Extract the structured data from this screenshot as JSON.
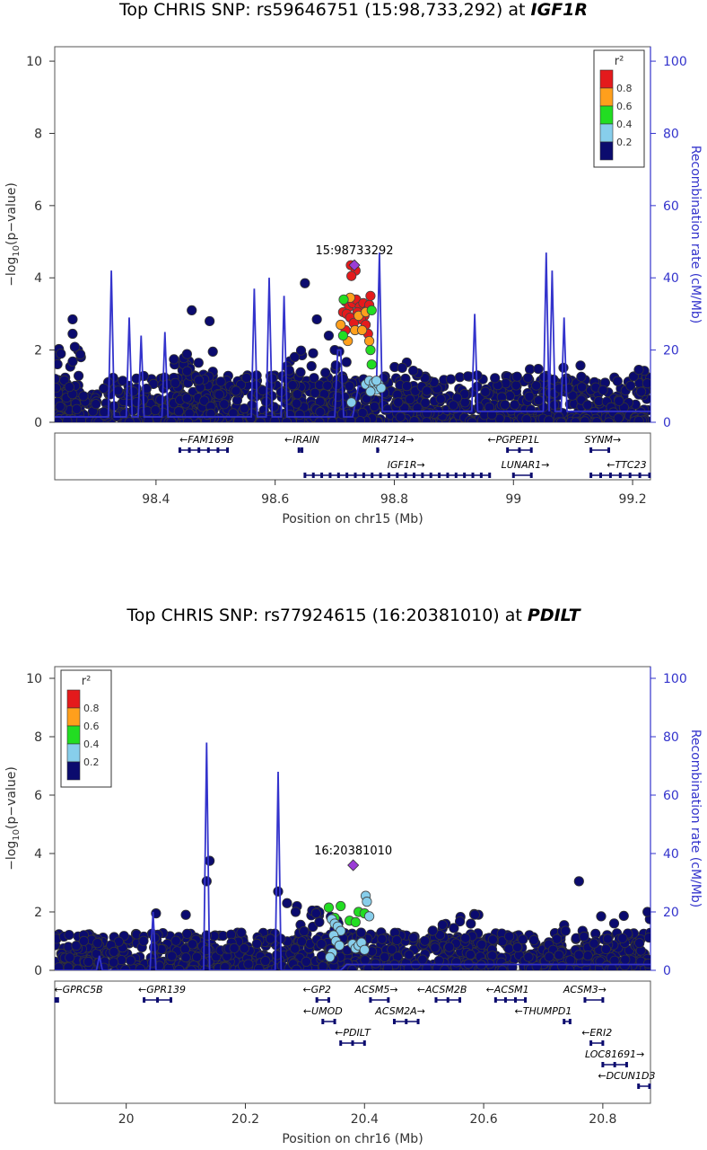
{
  "charts": [
    {
      "title_prefix": "Top CHRIS SNP: rs59646751 (15:98,733,292) at ",
      "title_gene": "IGF1R"
    },
    {
      "title_prefix": "Top CHRIS SNP: rs77924615 (16:20381010) at ",
      "title_gene": "PDILT"
    }
  ],
  "colors": {
    "r2_0.8_1.0": "#e41a1c",
    "r2_0.6_0.8": "#ff9f1c",
    "r2_0.4_0.6": "#22dd22",
    "r2_0.2_0.4": "#87ceeb",
    "r2_0.0_0.2": "#0b0b6e",
    "lead_snp": "#9b3dd6",
    "recombination": "#3333cc",
    "gene": "#0b0b6e"
  },
  "chart_data": [
    {
      "type": "scatter",
      "title": "Top CHRIS SNP: rs59646751 (15:98,733,292) at IGF1R",
      "xlabel": "Position on chr15 (Mb)",
      "ylabel": "-log10(p-value)",
      "y2label": "Recombination rate (cM/Mb)",
      "xlim": [
        98.23,
        99.23
      ],
      "xticks": [
        98.4,
        98.6,
        98.8,
        99,
        99.2
      ],
      "xtick_labels": [
        "98.4",
        "98.6",
        "98.8",
        "99",
        "99.2"
      ],
      "ylim": [
        0,
        10.4
      ],
      "yticks": [
        0,
        2,
        4,
        6,
        8,
        10
      ],
      "y2ticks": [
        0,
        20,
        40,
        60,
        80,
        100
      ],
      "legend": {
        "position": "top-right",
        "title": "r2",
        "labels": [
          "0.8",
          "0.6",
          "0.4",
          "0.2"
        ]
      },
      "lead_snp": {
        "label": "15:98733292",
        "x": 98.733,
        "y": 4.35
      },
      "colored_points": [
        {
          "x": 98.727,
          "y": 4.35,
          "r2": "high"
        },
        {
          "x": 98.735,
          "y": 4.2,
          "r2": "high"
        },
        {
          "x": 98.728,
          "y": 4.05,
          "r2": "high"
        },
        {
          "x": 98.718,
          "y": 3.35,
          "r2": "high"
        },
        {
          "x": 98.724,
          "y": 3.2,
          "r2": "high"
        },
        {
          "x": 98.73,
          "y": 3.3,
          "r2": "high"
        },
        {
          "x": 98.736,
          "y": 3.4,
          "r2": "high"
        },
        {
          "x": 98.742,
          "y": 3.2,
          "r2": "high"
        },
        {
          "x": 98.748,
          "y": 3.3,
          "r2": "high"
        },
        {
          "x": 98.754,
          "y": 3.1,
          "r2": "high"
        },
        {
          "x": 98.714,
          "y": 3.05,
          "r2": "high"
        },
        {
          "x": 98.72,
          "y": 3.0,
          "r2": "high"
        },
        {
          "x": 98.738,
          "y": 3.05,
          "r2": "high"
        },
        {
          "x": 98.75,
          "y": 2.95,
          "r2": "high"
        },
        {
          "x": 98.758,
          "y": 3.25,
          "r2": "high"
        },
        {
          "x": 98.726,
          "y": 2.9,
          "r2": "high"
        },
        {
          "x": 98.744,
          "y": 2.85,
          "r2": "high"
        },
        {
          "x": 98.752,
          "y": 2.7,
          "r2": "high"
        },
        {
          "x": 98.732,
          "y": 2.75,
          "r2": "high"
        },
        {
          "x": 98.718,
          "y": 2.55,
          "r2": "high"
        },
        {
          "x": 98.756,
          "y": 2.45,
          "r2": "high"
        },
        {
          "x": 98.76,
          "y": 3.5,
          "r2": "high"
        },
        {
          "x": 98.71,
          "y": 2.7,
          "r2": "mid"
        },
        {
          "x": 98.734,
          "y": 2.55,
          "r2": "mid"
        },
        {
          "x": 98.746,
          "y": 2.55,
          "r2": "mid"
        },
        {
          "x": 98.758,
          "y": 2.25,
          "r2": "mid"
        },
        {
          "x": 98.722,
          "y": 2.25,
          "r2": "mid"
        },
        {
          "x": 98.74,
          "y": 2.95,
          "r2": "mid"
        },
        {
          "x": 98.726,
          "y": 3.45,
          "r2": "mid"
        },
        {
          "x": 98.752,
          "y": 3.05,
          "r2": "mid"
        },
        {
          "x": 98.714,
          "y": 2.4,
          "r2": "low"
        },
        {
          "x": 98.762,
          "y": 3.1,
          "r2": "low"
        },
        {
          "x": 98.76,
          "y": 2.0,
          "r2": "low"
        },
        {
          "x": 98.762,
          "y": 1.6,
          "r2": "low"
        },
        {
          "x": 98.715,
          "y": 3.4,
          "r2": "low"
        },
        {
          "x": 98.752,
          "y": 1.05,
          "r2": "vlow"
        },
        {
          "x": 98.758,
          "y": 1.15,
          "r2": "vlow"
        },
        {
          "x": 98.764,
          "y": 0.95,
          "r2": "vlow"
        },
        {
          "x": 98.766,
          "y": 1.1,
          "r2": "vlow"
        },
        {
          "x": 98.77,
          "y": 0.9,
          "r2": "vlow"
        },
        {
          "x": 98.774,
          "y": 1.05,
          "r2": "vlow"
        },
        {
          "x": 98.778,
          "y": 0.95,
          "r2": "vlow"
        },
        {
          "x": 98.76,
          "y": 0.85,
          "r2": "vlow"
        },
        {
          "x": 98.77,
          "y": 1.15,
          "r2": "vlow"
        },
        {
          "x": 98.728,
          "y": 0.55,
          "r2": "vlow"
        }
      ],
      "notable_background_points": [
        {
          "x": 98.26,
          "y": 2.85
        },
        {
          "x": 98.26,
          "y": 2.45
        },
        {
          "x": 98.46,
          "y": 3.1
        },
        {
          "x": 98.49,
          "y": 2.8
        },
        {
          "x": 98.65,
          "y": 3.85
        },
        {
          "x": 98.67,
          "y": 2.85
        },
        {
          "x": 98.69,
          "y": 2.4
        },
        {
          "x": 98.7,
          "y": 2.0
        }
      ],
      "background_bands": [
        {
          "x0": 98.23,
          "x1": 99.23,
          "ymax": 1.3,
          "count": 1100
        },
        {
          "x0": 98.23,
          "x1": 98.28,
          "ymax": 2.1,
          "count": 40
        },
        {
          "x0": 98.43,
          "x1": 98.5,
          "ymax": 2.0,
          "count": 60
        },
        {
          "x0": 98.61,
          "x1": 98.72,
          "ymax": 2.1,
          "count": 60
        },
        {
          "x0": 98.8,
          "x1": 98.86,
          "ymax": 1.7,
          "count": 40
        },
        {
          "x0": 99.02,
          "x1": 99.23,
          "ymax": 1.6,
          "count": 60
        }
      ],
      "recombination": [
        [
          98.23,
          1.5
        ],
        [
          98.32,
          1.5
        ],
        [
          98.325,
          42
        ],
        [
          98.33,
          1.5
        ],
        [
          98.35,
          1.5
        ],
        [
          98.355,
          29
        ],
        [
          98.36,
          1.5
        ],
        [
          98.37,
          1.5
        ],
        [
          98.375,
          24
        ],
        [
          98.38,
          1.5
        ],
        [
          98.41,
          1.5
        ],
        [
          98.415,
          25
        ],
        [
          98.42,
          1.5
        ],
        [
          98.56,
          1.5
        ],
        [
          98.565,
          37
        ],
        [
          98.57,
          1.5
        ],
        [
          98.585,
          1.5
        ],
        [
          98.59,
          40
        ],
        [
          98.595,
          1.5
        ],
        [
          98.61,
          1.5
        ],
        [
          98.615,
          35
        ],
        [
          98.62,
          1.5
        ],
        [
          98.7,
          1.5
        ],
        [
          98.705,
          20
        ],
        [
          98.71,
          20
        ],
        [
          98.715,
          1.5
        ],
        [
          98.73,
          1.5
        ],
        [
          98.74,
          10
        ],
        [
          98.77,
          10
        ],
        [
          98.775,
          47
        ],
        [
          98.78,
          3
        ],
        [
          98.93,
          3
        ],
        [
          98.935,
          30
        ],
        [
          98.94,
          3
        ],
        [
          99.05,
          3
        ],
        [
          99.055,
          47
        ],
        [
          99.06,
          3
        ],
        [
          99.065,
          42
        ],
        [
          99.07,
          3
        ],
        [
          99.08,
          3
        ],
        [
          99.085,
          29
        ],
        [
          99.09,
          3
        ],
        [
          99.23,
          3
        ]
      ],
      "genes": [
        {
          "name": "FAM169B",
          "start": 98.44,
          "end": 98.52,
          "row": 0,
          "label_x": 98.485,
          "dir": "left"
        },
        {
          "name": "IRAIN",
          "start": 98.64,
          "end": 98.645,
          "row": 0,
          "label_x": 98.645,
          "dir": "left"
        },
        {
          "name": "MIR4714",
          "start": 98.772,
          "end": 98.775,
          "row": 0,
          "label_x": 98.79,
          "dir": "right"
        },
        {
          "name": "PGPEP1L",
          "start": 98.99,
          "end": 99.03,
          "row": 0,
          "label_x": 99.0,
          "dir": "left"
        },
        {
          "name": "SYNM",
          "start": 99.13,
          "end": 99.16,
          "row": 0,
          "label_x": 99.15,
          "dir": "right"
        },
        {
          "name": "IGF1R",
          "start": 98.65,
          "end": 98.96,
          "row": 1,
          "label_x": 98.82,
          "dir": "right"
        },
        {
          "name": "LUNAR1",
          "start": 99.0,
          "end": 99.03,
          "row": 1,
          "label_x": 99.02,
          "dir": "right"
        },
        {
          "name": "TTC23",
          "start": 99.13,
          "end": 99.23,
          "row": 1,
          "label_x": 99.19,
          "dir": "left"
        }
      ]
    },
    {
      "type": "scatter",
      "title": "Top CHRIS SNP: rs77924615 (16:20381010) at PDILT",
      "xlabel": "Position on chr16 (Mb)",
      "ylabel": "-log10(p-value)",
      "y2label": "Recombination rate (cM/Mb)",
      "xlim": [
        19.88,
        20.88
      ],
      "xticks": [
        20,
        20.2,
        20.4,
        20.6,
        20.8
      ],
      "xtick_labels": [
        "20",
        "20.2",
        "20.4",
        "20.6",
        "20.8"
      ],
      "ylim": [
        0,
        10.4
      ],
      "yticks": [
        0,
        2,
        4,
        6,
        8,
        10
      ],
      "y2ticks": [
        0,
        20,
        40,
        60,
        80,
        100
      ],
      "legend": {
        "position": "top-left",
        "title": "r2",
        "labels": [
          "0.8",
          "0.6",
          "0.4",
          "0.2"
        ]
      },
      "lead_snp": {
        "label": "16:20381010",
        "x": 20.381,
        "y": 3.6
      },
      "colored_points": [
        {
          "x": 20.34,
          "y": 2.15,
          "r2": "low"
        },
        {
          "x": 20.36,
          "y": 2.2,
          "r2": "low"
        },
        {
          "x": 20.39,
          "y": 2.0,
          "r2": "low"
        },
        {
          "x": 20.4,
          "y": 1.95,
          "r2": "low"
        },
        {
          "x": 20.375,
          "y": 1.7,
          "r2": "low"
        },
        {
          "x": 20.385,
          "y": 1.65,
          "r2": "low"
        },
        {
          "x": 20.35,
          "y": 1.8,
          "r2": "low"
        },
        {
          "x": 20.345,
          "y": 1.75,
          "r2": "vlow"
        },
        {
          "x": 20.35,
          "y": 1.6,
          "r2": "vlow"
        },
        {
          "x": 20.355,
          "y": 1.5,
          "r2": "vlow"
        },
        {
          "x": 20.36,
          "y": 1.35,
          "r2": "vlow"
        },
        {
          "x": 20.348,
          "y": 1.2,
          "r2": "vlow"
        },
        {
          "x": 20.352,
          "y": 1.0,
          "r2": "vlow"
        },
        {
          "x": 20.358,
          "y": 0.85,
          "r2": "vlow"
        },
        {
          "x": 20.346,
          "y": 0.6,
          "r2": "vlow"
        },
        {
          "x": 20.342,
          "y": 0.45,
          "r2": "vlow"
        },
        {
          "x": 20.38,
          "y": 0.9,
          "r2": "vlow"
        },
        {
          "x": 20.385,
          "y": 0.75,
          "r2": "vlow"
        },
        {
          "x": 20.39,
          "y": 0.85,
          "r2": "vlow"
        },
        {
          "x": 20.395,
          "y": 0.95,
          "r2": "vlow"
        },
        {
          "x": 20.402,
          "y": 2.55,
          "r2": "vlow"
        },
        {
          "x": 20.404,
          "y": 2.35,
          "r2": "vlow"
        },
        {
          "x": 20.408,
          "y": 1.85,
          "r2": "vlow"
        },
        {
          "x": 20.4,
          "y": 0.7,
          "r2": "vlow"
        }
      ],
      "notable_background_points": [
        {
          "x": 20.14,
          "y": 3.75
        },
        {
          "x": 20.135,
          "y": 3.05
        },
        {
          "x": 20.255,
          "y": 2.7
        },
        {
          "x": 20.27,
          "y": 2.3
        },
        {
          "x": 20.76,
          "y": 3.05
        },
        {
          "x": 20.05,
          "y": 1.95
        },
        {
          "x": 20.1,
          "y": 1.9
        },
        {
          "x": 20.875,
          "y": 2.0
        }
      ],
      "background_bands": [
        {
          "x0": 19.88,
          "x1": 20.88,
          "ymax": 1.3,
          "count": 1100
        },
        {
          "x0": 20.28,
          "x1": 20.36,
          "ymax": 2.2,
          "count": 50
        },
        {
          "x0": 20.5,
          "x1": 20.6,
          "ymax": 2.0,
          "count": 60
        },
        {
          "x0": 20.7,
          "x1": 20.88,
          "ymax": 1.9,
          "count": 50
        }
      ],
      "recombination": [
        [
          19.88,
          0
        ],
        [
          19.95,
          0
        ],
        [
          19.955,
          5
        ],
        [
          19.96,
          0
        ],
        [
          20.04,
          0
        ],
        [
          20.045,
          20
        ],
        [
          20.05,
          0
        ],
        [
          20.13,
          0
        ],
        [
          20.135,
          78
        ],
        [
          20.14,
          0
        ],
        [
          20.25,
          0
        ],
        [
          20.255,
          68
        ],
        [
          20.26,
          0
        ],
        [
          20.36,
          0
        ],
        [
          20.37,
          2
        ],
        [
          20.88,
          2
        ]
      ],
      "genes": [
        {
          "name": "GPRC5B",
          "start": 19.88,
          "end": 19.885,
          "row": 0,
          "label_x": 19.92,
          "dir": "left"
        },
        {
          "name": "GPR139",
          "start": 20.03,
          "end": 20.075,
          "row": 0,
          "label_x": 20.06,
          "dir": "left"
        },
        {
          "name": "GP2",
          "start": 20.32,
          "end": 20.34,
          "row": 0,
          "label_x": 20.32,
          "dir": "left"
        },
        {
          "name": "ACSM5",
          "start": 20.41,
          "end": 20.44,
          "row": 0,
          "label_x": 20.42,
          "dir": "right"
        },
        {
          "name": "ACSM2B",
          "start": 20.52,
          "end": 20.56,
          "row": 0,
          "label_x": 20.53,
          "dir": "left"
        },
        {
          "name": "ACSM1",
          "start": 20.62,
          "end": 20.67,
          "row": 0,
          "label_x": 20.64,
          "dir": "left"
        },
        {
          "name": "ACSM3",
          "start": 20.77,
          "end": 20.8,
          "row": 0,
          "label_x": 20.77,
          "dir": "right"
        },
        {
          "name": "UMOD",
          "start": 20.33,
          "end": 20.35,
          "row": 1,
          "label_x": 20.33,
          "dir": "left"
        },
        {
          "name": "ACSM2A",
          "start": 20.45,
          "end": 20.49,
          "row": 1,
          "label_x": 20.46,
          "dir": "right"
        },
        {
          "name": "THUMPD1",
          "start": 20.735,
          "end": 20.745,
          "row": 1,
          "label_x": 20.7,
          "dir": "left"
        },
        {
          "name": "PDILT",
          "start": 20.36,
          "end": 20.4,
          "row": 2,
          "label_x": 20.38,
          "dir": "left"
        },
        {
          "name": "ERI2",
          "start": 20.78,
          "end": 20.8,
          "row": 2,
          "label_x": 20.79,
          "dir": "left"
        },
        {
          "name": "LOC81691",
          "start": 20.8,
          "end": 20.84,
          "row": 3,
          "label_x": 20.82,
          "dir": "right"
        },
        {
          "name": "DCUN1D3",
          "start": 20.86,
          "end": 20.88,
          "row": 4,
          "label_x": 20.84,
          "dir": "left"
        }
      ]
    }
  ]
}
